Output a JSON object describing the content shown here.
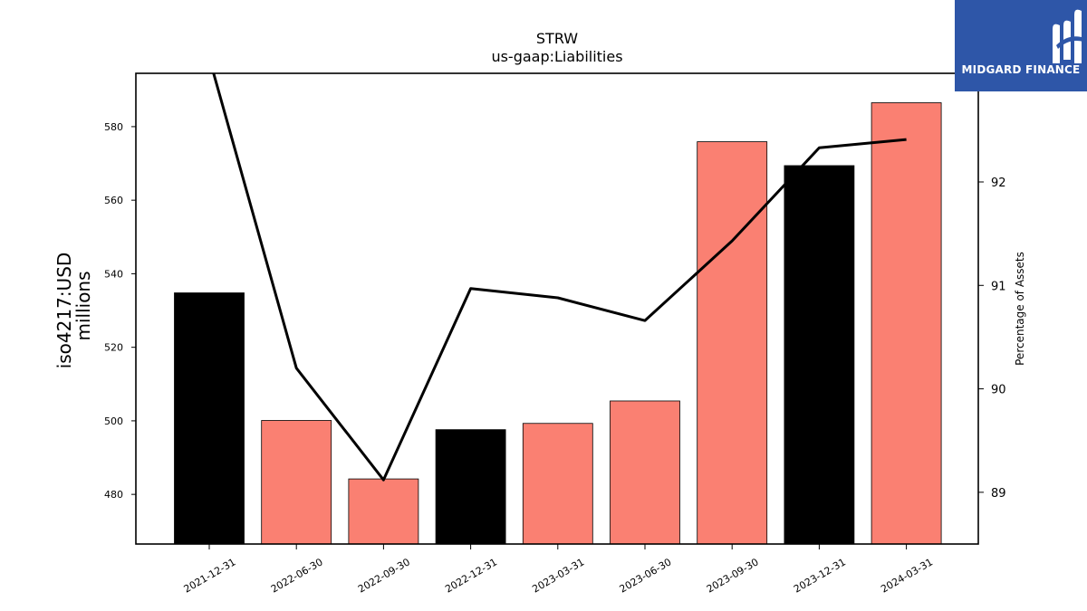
{
  "logo": {
    "text": "MIDGARD FINANCE",
    "icon": "midgard-logo-icon",
    "background": "#2e56a8"
  },
  "chart_data": {
    "type": "bar",
    "title": "STRW",
    "subtitle": "us-gaap:Liabilities",
    "ylabel": "iso4217:USD",
    "ylabel2": "millions",
    "y2label": "Percentage of Assets",
    "categories": [
      "2021-12-31",
      "2022-06-30",
      "2022-09-30",
      "2022-12-31",
      "2023-03-31",
      "2023-06-30",
      "2023-09-30",
      "2023-12-31",
      "2024-03-31"
    ],
    "values": [
      534.8,
      500.1,
      484.2,
      497.6,
      499.3,
      505.4,
      575.9,
      569.4,
      586.5
    ],
    "bar_colors": [
      "#000000",
      "#fa8072",
      "#fa8072",
      "#000000",
      "#fa8072",
      "#fa8072",
      "#fa8072",
      "#000000",
      "#fa8072"
    ],
    "ylim": [
      466.5,
      594.5
    ],
    "yticks": [
      480,
      500,
      520,
      540,
      560,
      580
    ],
    "line": {
      "axis": "right",
      "color": "#000000",
      "values": [
        93.2,
        90.2,
        89.12,
        90.97,
        90.88,
        90.66,
        91.43,
        92.33,
        92.41
      ]
    },
    "y2lim": [
      88.5,
      93.05
    ],
    "y2ticks": [
      89,
      90,
      91,
      92
    ],
    "grid": false,
    "legend": "none"
  }
}
